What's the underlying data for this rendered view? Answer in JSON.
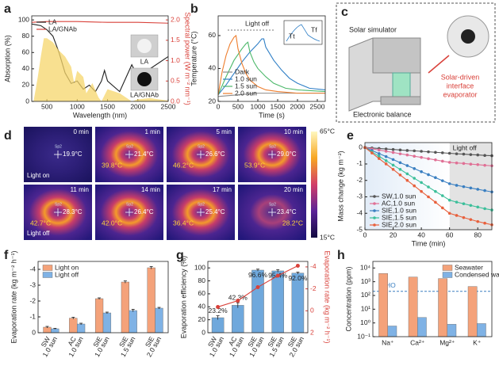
{
  "chart_data": [
    {
      "panel": "a",
      "type": "line",
      "xlabel": "Wavelength (nm)",
      "ylabel": "Absorption (%)",
      "y2label": "Spectral power (W m⁻² nm⁻¹)",
      "y2color": "#d9413a",
      "xlim": [
        250,
        2500
      ],
      "xticks": [
        500,
        1000,
        1500,
        2000,
        2500
      ],
      "ylim": [
        0,
        105
      ],
      "yticks": [
        0,
        20,
        40,
        60,
        80,
        100
      ],
      "y2lim": [
        0,
        2.1
      ],
      "y2ticks": [
        {
          "value": 0,
          "label": "0.0"
        },
        {
          "value": 0.5,
          "label": "0.5"
        },
        {
          "value": 1,
          "label": "1.0"
        },
        {
          "value": 1.5,
          "label": "1.5"
        },
        {
          "value": 2,
          "label": "2.0"
        }
      ],
      "legend": "top-left",
      "photo_labels": [
        "LA",
        "LA/GNAb"
      ],
      "series": [
        {
          "name": "LA",
          "color": "#222222",
          "x": [
            250,
            400,
            500,
            600,
            700,
            800,
            900,
            1000,
            1100,
            1200,
            1300,
            1400,
            1450,
            1500,
            1700,
            1900,
            2000,
            2200,
            2500
          ],
          "values": [
            95,
            93,
            88,
            80,
            60,
            35,
            22,
            25,
            15,
            20,
            12,
            25,
            38,
            25,
            12,
            45,
            30,
            40,
            55
          ]
        },
        {
          "name": "LA/GNAb",
          "color": "#d9413a",
          "x": [
            250,
            500,
            1000,
            1500,
            2000,
            2500
          ],
          "values": [
            97,
            98,
            98,
            97,
            97,
            96
          ]
        },
        {
          "color": "#f5d66b",
          "axis": "y2",
          "fill": true,
          "x": [
            280,
            350,
            400,
            450,
            500,
            600,
            700,
            800,
            900,
            950,
            1000,
            1100,
            1150,
            1250,
            1350,
            1400,
            1500,
            1700,
            1800,
            1900,
            2000,
            2200,
            2500
          ],
          "values": [
            0,
            0.6,
            1.1,
            1.55,
            1.55,
            1.45,
            1.25,
            1.1,
            0.85,
            0.45,
            0.75,
            0.6,
            0.2,
            0.45,
            0.1,
            0,
            0.3,
            0.2,
            0.1,
            0,
            0.05,
            0.08,
            0.02
          ]
        }
      ]
    },
    {
      "panel": "b",
      "type": "line",
      "xlabel": "Time (s)",
      "ylabel": "Temperature (°C)",
      "xlim": [
        0,
        2700
      ],
      "xticks": [
        0,
        500,
        1000,
        1500,
        2000,
        2500
      ],
      "ylim": [
        20,
        72
      ],
      "yticks": [
        20,
        40,
        60
      ],
      "legend": "bottom-left",
      "annotation": "Light off",
      "inset_labels": [
        "Tt",
        "Tf"
      ],
      "series": [
        {
          "name": "Dark",
          "color": "#8c8c8c",
          "x": [
            0,
            500,
            1000,
            1500,
            2000,
            2500,
            2700
          ],
          "values": [
            23,
            24,
            25,
            25,
            25,
            25,
            25
          ]
        },
        {
          "name": "1.0 sun",
          "color": "#2f7fc6",
          "x": [
            0,
            200,
            400,
            600,
            800,
            1000,
            1100,
            1150,
            1200,
            1400,
            1600,
            1800,
            2000,
            2300,
            2700
          ],
          "values": [
            24,
            30,
            37,
            44,
            50,
            55,
            58,
            58,
            53,
            45,
            39,
            34,
            31,
            28,
            27
          ]
        },
        {
          "name": "1.5 sun",
          "color": "#4cb86a",
          "x": [
            0,
            200,
            400,
            600,
            700,
            750,
            800,
            900,
            1000,
            1200,
            1400,
            1700,
            2000,
            2700
          ],
          "values": [
            24,
            35,
            45,
            52,
            55,
            56,
            50,
            44,
            40,
            35,
            31,
            28,
            27,
            26
          ]
        },
        {
          "name": "2.0 sun",
          "color": "#ee7d2c",
          "x": [
            0,
            100,
            200,
            300,
            400,
            450,
            500,
            600,
            700,
            800,
            1000,
            1200,
            1500,
            2000,
            2700
          ],
          "values": [
            24,
            38,
            48,
            55,
            59,
            60,
            52,
            43,
            37,
            33,
            29,
            27,
            26,
            25,
            25
          ]
        }
      ]
    },
    {
      "panel": "e",
      "type": "line",
      "markers": true,
      "xlabel": "Time (min)",
      "ylabel": "Mass change (kg m⁻²)",
      "xlim": [
        0,
        90
      ],
      "xticks": [
        0,
        20,
        40,
        60,
        80
      ],
      "ylim": [
        -5,
        0.3
      ],
      "yticks": [
        -5,
        -4,
        -3,
        -2,
        -1,
        0
      ],
      "legend": "bottom-left",
      "annotation": {
        "text": "Light off",
        "x": 60
      },
      "x": [
        0,
        5,
        10,
        15,
        20,
        25,
        30,
        35,
        40,
        45,
        50,
        55,
        60,
        65,
        70,
        75,
        80,
        85,
        90
      ],
      "series": [
        {
          "name": "SW,1.0 sun",
          "color": "#555555",
          "values": [
            0,
            -0.03,
            -0.06,
            -0.09,
            -0.12,
            -0.15,
            -0.18,
            -0.2,
            -0.23,
            -0.26,
            -0.29,
            -0.32,
            -0.35,
            -0.38,
            -0.4,
            -0.43,
            -0.45,
            -0.48,
            -0.5
          ]
        },
        {
          "name": "AC,1.0 sun",
          "color": "#e07095",
          "values": [
            0,
            -0.08,
            -0.15,
            -0.23,
            -0.3,
            -0.38,
            -0.45,
            -0.53,
            -0.6,
            -0.68,
            -0.75,
            -0.83,
            -0.9,
            -0.94,
            -0.97,
            -1.01,
            -1.04,
            -1.08,
            -1.11
          ]
        },
        {
          "name": "SIE,1.0 sun",
          "color": "#3a7fc1",
          "values": [
            0,
            -0.18,
            -0.37,
            -0.55,
            -0.73,
            -0.92,
            -1.1,
            -1.28,
            -1.47,
            -1.65,
            -1.83,
            -2.02,
            -2.2,
            -2.3,
            -2.38,
            -2.46,
            -2.54,
            -2.62,
            -2.7
          ]
        },
        {
          "name": "SIE,1.5 sun",
          "color": "#3cbf9a",
          "values": [
            0,
            -0.27,
            -0.53,
            -0.8,
            -1.07,
            -1.33,
            -1.6,
            -1.87,
            -2.13,
            -2.4,
            -2.67,
            -2.93,
            -3.2,
            -3.32,
            -3.42,
            -3.52,
            -3.62,
            -3.72,
            -3.8
          ]
        },
        {
          "name": "SIE,2.0 sun",
          "color": "#e8603c",
          "values": [
            0,
            -0.33,
            -0.67,
            -1,
            -1.33,
            -1.67,
            -2,
            -2.33,
            -2.67,
            -3,
            -3.33,
            -3.67,
            -4,
            -4.13,
            -4.26,
            -4.38,
            -4.5,
            -4.6,
            -4.7
          ]
        }
      ]
    },
    {
      "panel": "f",
      "type": "bar",
      "ylabel": "Evaporation rate (kg m⁻² h⁻¹)",
      "categories": [
        "SW",
        "AC",
        "SIE",
        "SIE",
        "SIE"
      ],
      "conditions": [
        "1.0 sun",
        "1.0 sun",
        "1.0 sun",
        "1.5 sun",
        "2.0 sun"
      ],
      "ylim": [
        0,
        -4.5
      ],
      "yticks": [
        0,
        -1,
        -2,
        -3,
        -4
      ],
      "legend": "top-left",
      "series": [
        {
          "name": "Light on",
          "color": "#f4a27a",
          "values": [
            -0.35,
            -0.92,
            -2.15,
            -3.2,
            -4.1
          ],
          "errors": [
            0.05,
            0.06,
            0.05,
            0.07,
            0.08
          ]
        },
        {
          "name": "Light off",
          "color": "#7fb2e5",
          "values": [
            -0.25,
            -0.55,
            -1.25,
            -1.4,
            -1.55
          ],
          "errors": [
            0.03,
            0.05,
            0.05,
            0.08,
            0.05
          ]
        }
      ]
    },
    {
      "panel": "g",
      "type": "bar",
      "ylabel": "Evaporation efficiency (%)",
      "y2label": "Evaporation rate (kg m⁻² h⁻¹)",
      "y2color": "#d9413a",
      "categories": [
        "SW",
        "AC",
        "SIE",
        "SIE",
        "SIE"
      ],
      "conditions": [
        "1.0 sun",
        "1.0 sun",
        "1.0 sun",
        "1.5 sun",
        "2.0 sun"
      ],
      "ylim": [
        0,
        110
      ],
      "yticks": [
        0,
        20,
        40,
        60,
        80,
        100
      ],
      "y2lim": [
        2,
        -4.5
      ],
      "y2ticks": [
        2,
        0,
        -2,
        -4
      ],
      "series": [
        {
          "color": "#6fa8dc",
          "values": [
            23.2,
            42.3,
            96.6,
            95.4,
            92.0
          ],
          "value_labels": [
            "23.2%",
            "42.3%",
            "96.6%",
            "95.4%",
            "92.0%"
          ],
          "errors": [
            3,
            4,
            1.5,
            2,
            1.5
          ]
        },
        {
          "color": "#d9413a",
          "axis": "y2",
          "values": [
            -0.35,
            -0.92,
            -2.15,
            -3.2,
            -4.1
          ]
        }
      ]
    },
    {
      "panel": "h",
      "type": "bar",
      "log_y": true,
      "ylabel": "Concentration (ppm)",
      "categories": [
        "Na⁺",
        "Ca²⁺",
        "Mg²⁺",
        "K⁺"
      ],
      "ylim": [
        0.1,
        30000
      ],
      "yticks": [
        {
          "value": 0.1,
          "label": "10⁻¹"
        },
        {
          "value": 1,
          "label": "10⁰"
        },
        {
          "value": 10,
          "label": "10¹"
        },
        {
          "value": 100,
          "label": "10²"
        },
        {
          "value": 1000,
          "label": "10³"
        },
        {
          "value": 10000,
          "label": "10⁴"
        }
      ],
      "legend": "top-right",
      "reference": {
        "text": "WHO",
        "value": 200
      },
      "series": [
        {
          "name": "Seawater",
          "color": "#f4a27a",
          "values": [
            4000,
            2200,
            1700,
            450
          ]
        },
        {
          "name": "Condensed water",
          "color": "#7fb2e5",
          "values": [
            0.6,
            2.5,
            0.8,
            0.9
          ]
        }
      ]
    }
  ],
  "panel_c": {
    "panel": "c",
    "labels": [
      "Solar simulator",
      "Electronic balance"
    ],
    "evaporator_label": [
      "Solar-driven",
      "interface",
      "evaporator"
    ]
  },
  "panel_d": {
    "panel": "d",
    "colorbar": [
      "65°C",
      "15°C"
    ],
    "images": [
      {
        "time": "0 min",
        "spot": "Sp2",
        "temp": "19.9°C",
        "note": "Light on"
      },
      {
        "time": "1 min",
        "spot": "Sp2",
        "temp": "21.4°C",
        "max": "39.8°C"
      },
      {
        "time": "5 min",
        "spot": "Sp2",
        "temp": "26.6°C",
        "max": "46.2°C"
      },
      {
        "time": "10 min",
        "spot": "Sp2",
        "temp": "29.0°C",
        "max": "53.9°C"
      },
      {
        "time": "11 min",
        "spot": "Sp2",
        "temp": "28.3°C",
        "max": "42.7°C",
        "note": "Light off"
      },
      {
        "time": "14 min",
        "spot": "Sp2",
        "temp": "26.4°C",
        "max": "42.0°C"
      },
      {
        "time": "17 min",
        "spot": "Sp2",
        "temp": "25.4°C",
        "max": "36.4°C"
      },
      {
        "time": "20 min",
        "spot": "Sp2",
        "temp": "23.4°C",
        "max": "28.2°C"
      }
    ]
  }
}
